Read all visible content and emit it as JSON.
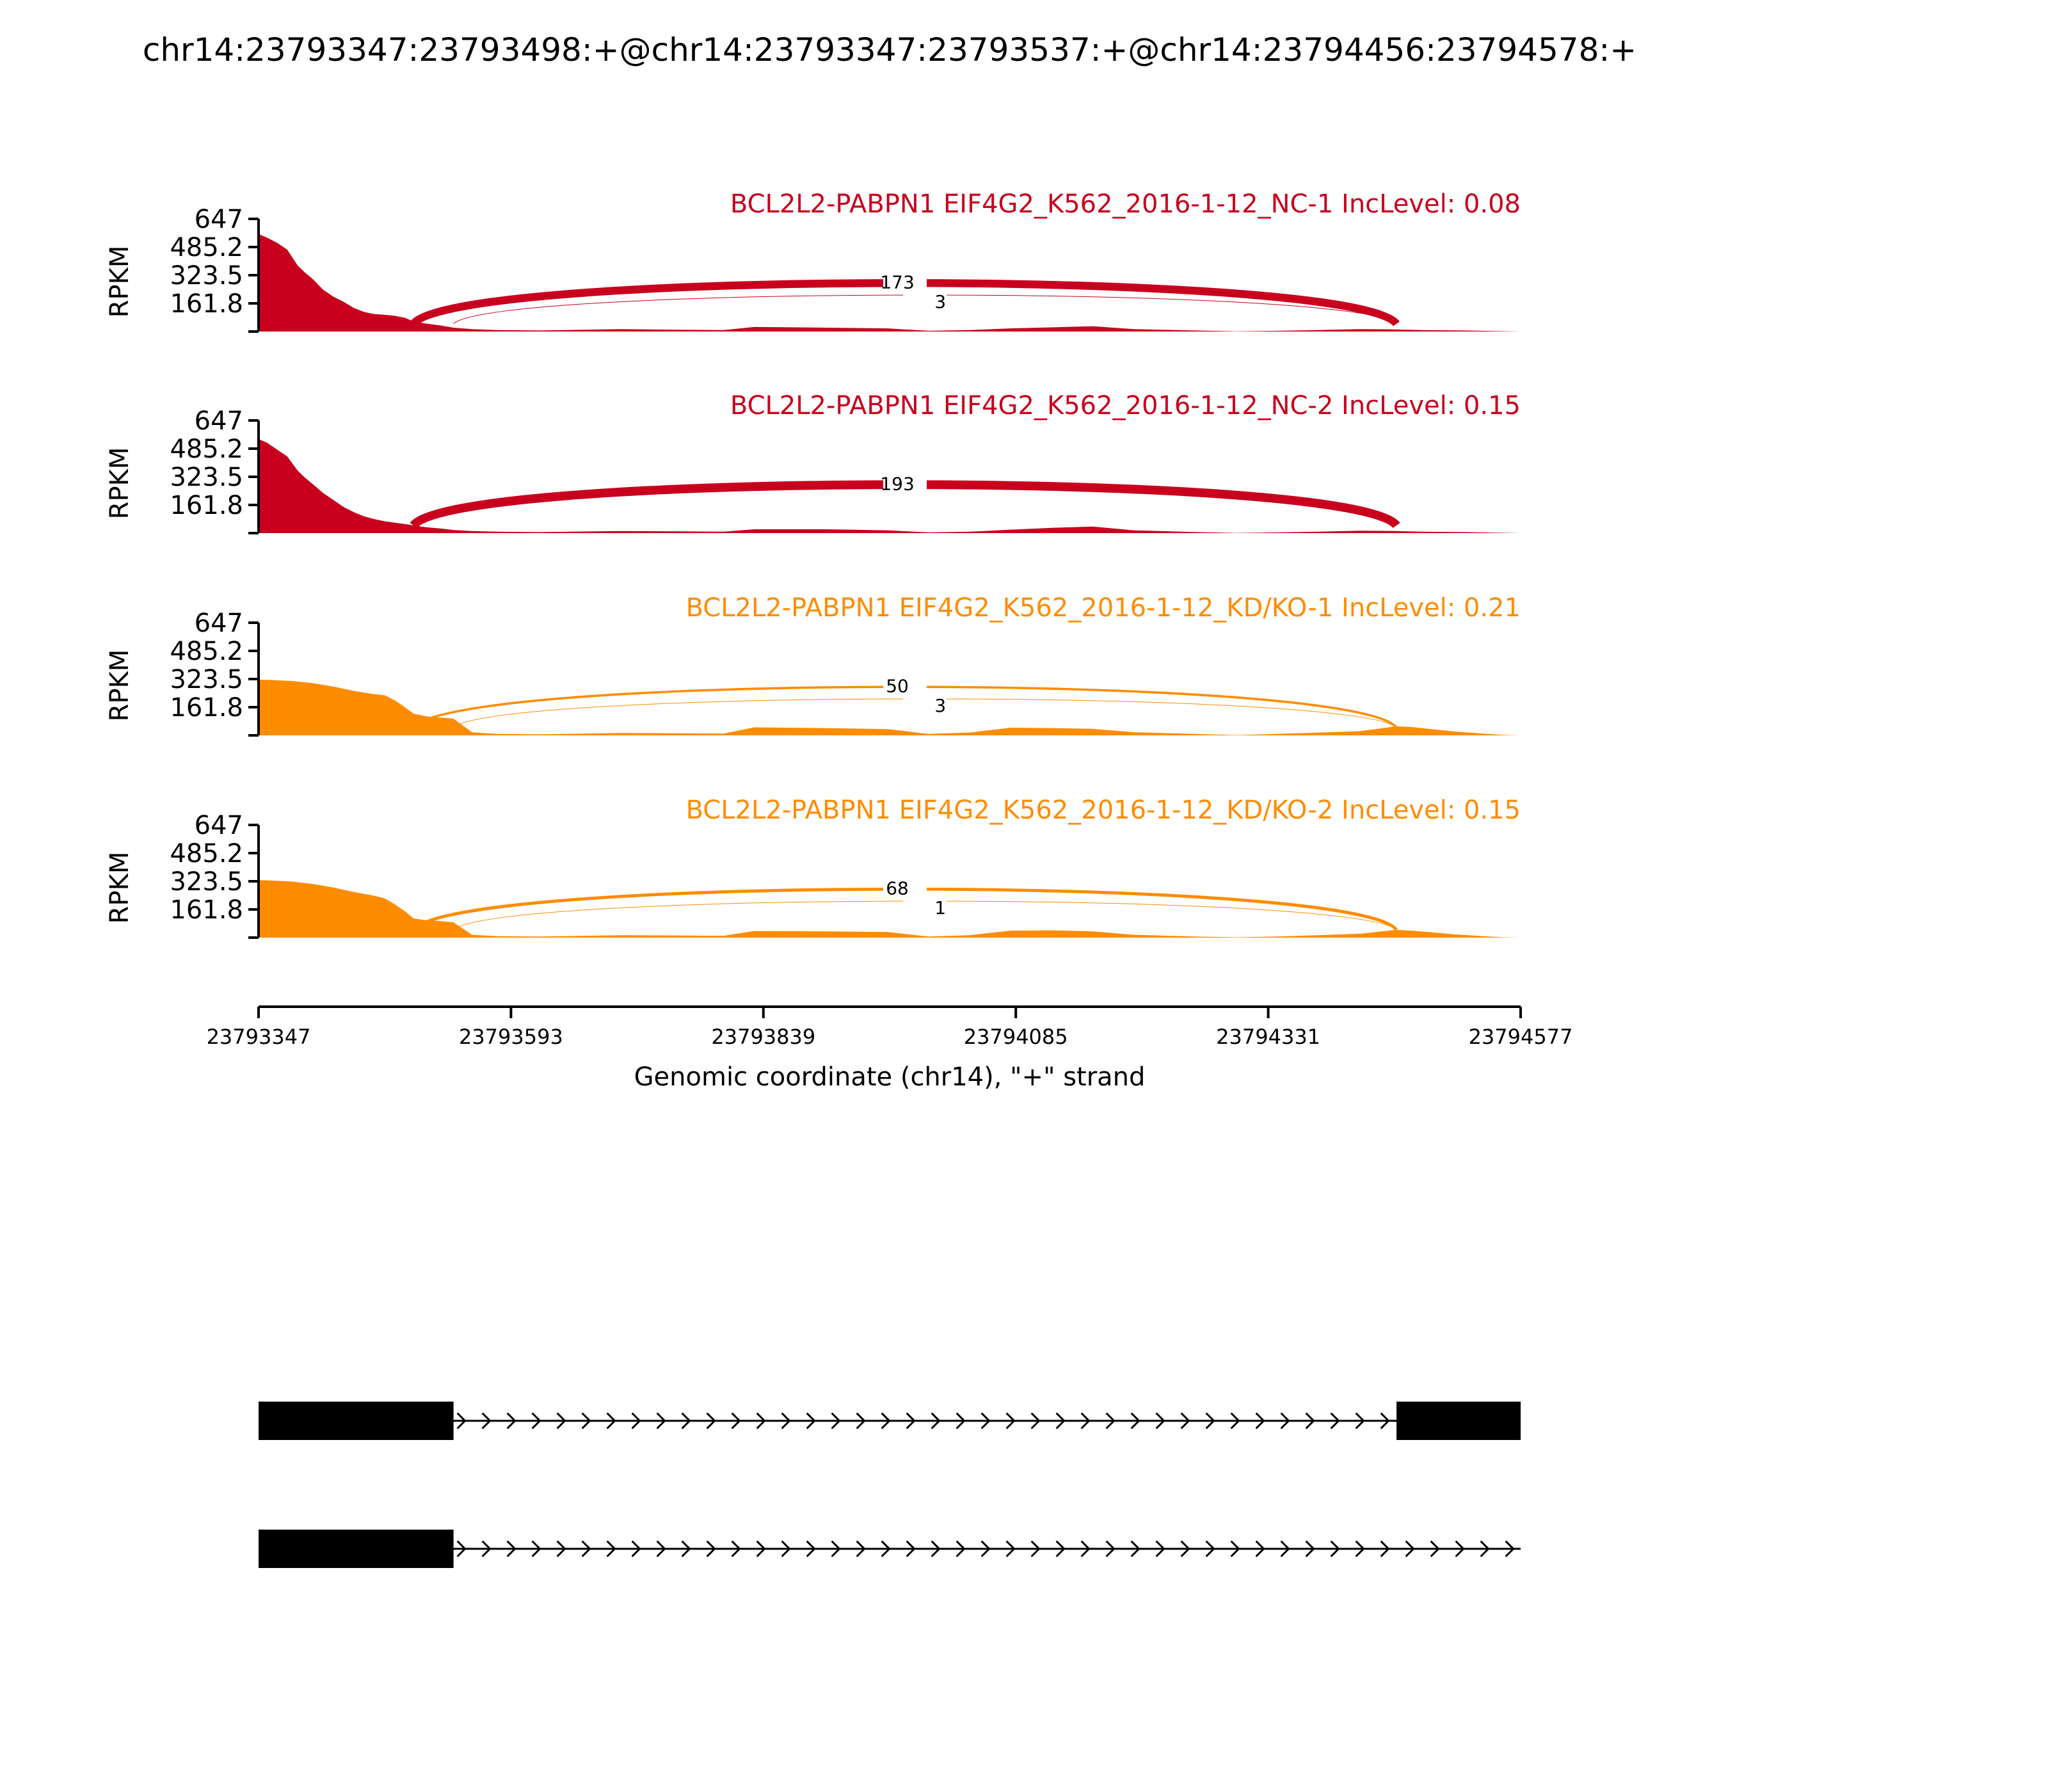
{
  "chart_data": {
    "type": "area",
    "title": "chr14:23793347:23793498:+@chr14:23793347:23793537:+@chr14:23794456:23794578:+",
    "xlabel": "Genomic coordinate (chr14), \"+\" strand",
    "ylabel": "RPKM",
    "xlim": [
      23793347,
      23794577
    ],
    "ylim": [
      0,
      647
    ],
    "x_ticks": [
      "23793347",
      "23793593",
      "23793839",
      "23794085",
      "23794331",
      "23794577"
    ],
    "y_ticks": [
      "647",
      "485.2",
      "323.5",
      "161.8"
    ],
    "colors": {
      "nc": "#c8001e",
      "kd": "#ff8c00",
      "gene": "#000000"
    },
    "exons": [
      {
        "start": 23793347,
        "end": 23793498
      },
      {
        "start": 23793347,
        "end": 23793537
      },
      {
        "start": 23794456,
        "end": 23794578
      }
    ],
    "series": [
      {
        "name": "BCL2L2-PABPN1 EIF4G2_K562_2016-1-12_NC-1 IncLevel: 0.08",
        "color_key": "nc",
        "coverage": [
          [
            23793347,
            560
          ],
          [
            23793355,
            540
          ],
          [
            23793365,
            510
          ],
          [
            23793375,
            470
          ],
          [
            23793385,
            380
          ],
          [
            23793392,
            340
          ],
          [
            23793400,
            300
          ],
          [
            23793410,
            240
          ],
          [
            23793420,
            200
          ],
          [
            23793430,
            170
          ],
          [
            23793440,
            135
          ],
          [
            23793450,
            112
          ],
          [
            23793460,
            100
          ],
          [
            23793470,
            96
          ],
          [
            23793480,
            90
          ],
          [
            23793490,
            78
          ],
          [
            23793498,
            58
          ],
          [
            23793510,
            46
          ],
          [
            23793525,
            34
          ],
          [
            23793537,
            22
          ],
          [
            23793555,
            14
          ],
          [
            23793580,
            8
          ],
          [
            23793620,
            6
          ],
          [
            23793700,
            14
          ],
          [
            23793760,
            10
          ],
          [
            23793800,
            8
          ],
          [
            23793830,
            26
          ],
          [
            23793900,
            22
          ],
          [
            23793960,
            18
          ],
          [
            23794000,
            4
          ],
          [
            23794040,
            8
          ],
          [
            23794080,
            18
          ],
          [
            23794120,
            24
          ],
          [
            23794160,
            30
          ],
          [
            23794200,
            14
          ],
          [
            23794260,
            6
          ],
          [
            23794300,
            1
          ],
          [
            23794340,
            4
          ],
          [
            23794380,
            8
          ],
          [
            23794420,
            14
          ],
          [
            23794456,
            12
          ],
          [
            23794480,
            8
          ],
          [
            23794520,
            6
          ],
          [
            23794560,
            2
          ],
          [
            23794577,
            0
          ]
        ],
        "junctions": [
          {
            "start": 23793498,
            "end": 23794456,
            "label": "173",
            "count": 173
          },
          {
            "start": 23793537,
            "end": 23794456,
            "label": "3",
            "count": 3
          }
        ]
      },
      {
        "name": "BCL2L2-PABPN1 EIF4G2_K562_2016-1-12_NC-2 IncLevel: 0.15",
        "color_key": "nc",
        "coverage": [
          [
            23793347,
            540
          ],
          [
            23793355,
            520
          ],
          [
            23793365,
            480
          ],
          [
            23793375,
            440
          ],
          [
            23793385,
            360
          ],
          [
            23793392,
            320
          ],
          [
            23793400,
            280
          ],
          [
            23793410,
            230
          ],
          [
            23793420,
            190
          ],
          [
            23793430,
            150
          ],
          [
            23793440,
            120
          ],
          [
            23793450,
            96
          ],
          [
            23793460,
            80
          ],
          [
            23793470,
            68
          ],
          [
            23793480,
            60
          ],
          [
            23793490,
            52
          ],
          [
            23793498,
            44
          ],
          [
            23793510,
            34
          ],
          [
            23793525,
            26
          ],
          [
            23793537,
            18
          ],
          [
            23793555,
            12
          ],
          [
            23793580,
            8
          ],
          [
            23793620,
            6
          ],
          [
            23793700,
            12
          ],
          [
            23793760,
            10
          ],
          [
            23793800,
            8
          ],
          [
            23793830,
            22
          ],
          [
            23793900,
            22
          ],
          [
            23793960,
            16
          ],
          [
            23794000,
            4
          ],
          [
            23794040,
            8
          ],
          [
            23794080,
            20
          ],
          [
            23794120,
            30
          ],
          [
            23794160,
            38
          ],
          [
            23794200,
            16
          ],
          [
            23794260,
            6
          ],
          [
            23794300,
            1
          ],
          [
            23794340,
            4
          ],
          [
            23794380,
            8
          ],
          [
            23794420,
            14
          ],
          [
            23794456,
            12
          ],
          [
            23794480,
            8
          ],
          [
            23794520,
            6
          ],
          [
            23794560,
            2
          ],
          [
            23794577,
            0
          ]
        ],
        "junctions": [
          {
            "start": 23793498,
            "end": 23794456,
            "label": "193",
            "count": 193
          }
        ]
      },
      {
        "name": "BCL2L2-PABPN1 EIF4G2_K562_2016-1-12_KD/KO-1 IncLevel: 0.21",
        "color_key": "kd",
        "coverage": [
          [
            23793347,
            320
          ],
          [
            23793360,
            318
          ],
          [
            23793380,
            312
          ],
          [
            23793400,
            300
          ],
          [
            23793420,
            280
          ],
          [
            23793440,
            255
          ],
          [
            23793460,
            236
          ],
          [
            23793470,
            230
          ],
          [
            23793480,
            200
          ],
          [
            23793490,
            160
          ],
          [
            23793498,
            125
          ],
          [
            23793510,
            110
          ],
          [
            23793525,
            102
          ],
          [
            23793537,
            96
          ],
          [
            23793555,
            18
          ],
          [
            23793580,
            8
          ],
          [
            23793620,
            6
          ],
          [
            23793700,
            14
          ],
          [
            23793760,
            12
          ],
          [
            23793800,
            10
          ],
          [
            23793830,
            46
          ],
          [
            23793900,
            42
          ],
          [
            23793960,
            36
          ],
          [
            23794000,
            8
          ],
          [
            23794040,
            16
          ],
          [
            23794080,
            44
          ],
          [
            23794120,
            42
          ],
          [
            23794160,
            38
          ],
          [
            23794200,
            18
          ],
          [
            23794260,
            8
          ],
          [
            23794300,
            2
          ],
          [
            23794340,
            8
          ],
          [
            23794380,
            16
          ],
          [
            23794420,
            24
          ],
          [
            23794456,
            52
          ],
          [
            23794470,
            48
          ],
          [
            23794490,
            36
          ],
          [
            23794510,
            24
          ],
          [
            23794540,
            10
          ],
          [
            23794560,
            3
          ],
          [
            23794577,
            0
          ]
        ],
        "junctions": [
          {
            "start": 23793498,
            "end": 23794456,
            "label": "50",
            "count": 50
          },
          {
            "start": 23793537,
            "end": 23794456,
            "label": "3",
            "count": 3
          }
        ]
      },
      {
        "name": "BCL2L2-PABPN1 EIF4G2_K562_2016-1-12_KD/KO-2 IncLevel: 0.15",
        "color_key": "kd",
        "coverage": [
          [
            23793347,
            330
          ],
          [
            23793360,
            328
          ],
          [
            23793380,
            322
          ],
          [
            23793400,
            308
          ],
          [
            23793420,
            288
          ],
          [
            23793440,
            262
          ],
          [
            23793460,
            240
          ],
          [
            23793470,
            225
          ],
          [
            23793480,
            190
          ],
          [
            23793490,
            150
          ],
          [
            23793498,
            110
          ],
          [
            23793510,
            100
          ],
          [
            23793525,
            94
          ],
          [
            23793537,
            88
          ],
          [
            23793555,
            16
          ],
          [
            23793580,
            8
          ],
          [
            23793620,
            6
          ],
          [
            23793700,
            14
          ],
          [
            23793760,
            12
          ],
          [
            23793800,
            10
          ],
          [
            23793830,
            38
          ],
          [
            23793900,
            36
          ],
          [
            23793960,
            32
          ],
          [
            23794000,
            6
          ],
          [
            23794040,
            14
          ],
          [
            23794080,
            40
          ],
          [
            23794120,
            42
          ],
          [
            23794160,
            36
          ],
          [
            23794200,
            16
          ],
          [
            23794260,
            6
          ],
          [
            23794300,
            2
          ],
          [
            23794340,
            6
          ],
          [
            23794380,
            14
          ],
          [
            23794420,
            22
          ],
          [
            23794456,
            44
          ],
          [
            23794470,
            40
          ],
          [
            23794490,
            30
          ],
          [
            23794510,
            20
          ],
          [
            23794540,
            8
          ],
          [
            23794560,
            2
          ],
          [
            23794577,
            0
          ]
        ],
        "junctions": [
          {
            "start": 23793498,
            "end": 23794456,
            "label": "68",
            "count": 68
          },
          {
            "start": 23793537,
            "end": 23794456,
            "label": "1",
            "count": 1
          }
        ]
      }
    ],
    "transcripts": [
      {
        "exons": [
          [
            23793347,
            23793498
          ],
          [
            23793347,
            23793537
          ],
          [
            23794456,
            23794578
          ]
        ]
      },
      {
        "exons": [
          [
            23793347,
            23793498
          ],
          [
            23793347,
            23793537
          ]
        ]
      }
    ]
  }
}
